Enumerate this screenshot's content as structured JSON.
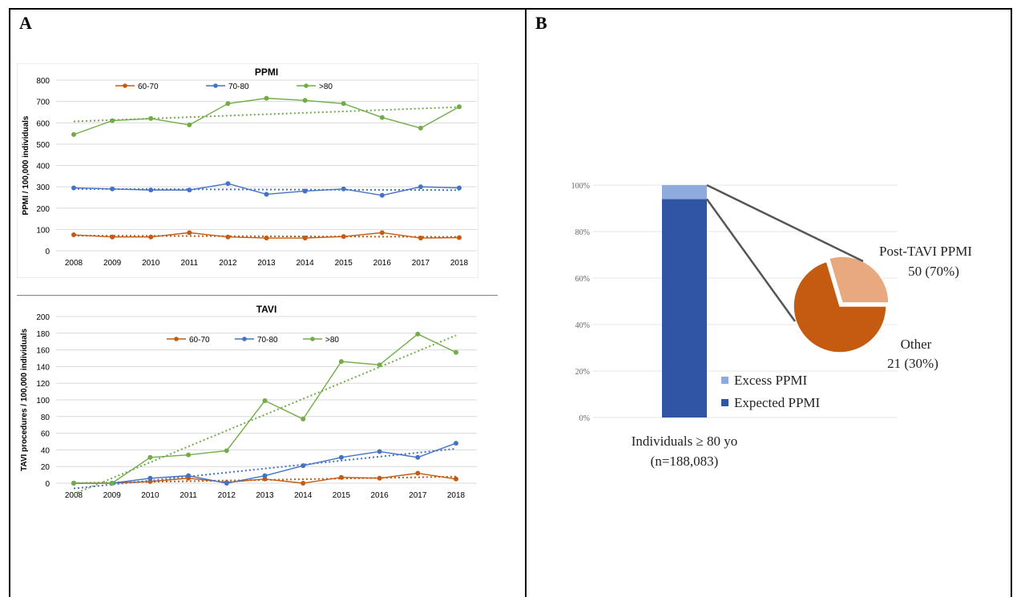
{
  "panels": {
    "a_label": "A",
    "b_label": "B"
  },
  "chart_data": [
    {
      "type": "line",
      "title": "PPMI",
      "ylabel": "PPMI / 100,000 individuals",
      "xlabel": "",
      "x": [
        "2008",
        "2009",
        "2010",
        "2011",
        "2012",
        "2013",
        "2014",
        "2015",
        "2016",
        "2017",
        "2018"
      ],
      "ylim": [
        0,
        800
      ],
      "yticks": [
        0,
        100,
        200,
        300,
        400,
        500,
        600,
        700,
        800
      ],
      "grid": true,
      "legend": "top",
      "trendlines": true,
      "series": [
        {
          "name": "60-70",
          "color": "#c55a11",
          "values": [
            75,
            65,
            65,
            85,
            65,
            60,
            60,
            67,
            85,
            60,
            62
          ]
        },
        {
          "name": "70-80",
          "color": "#4472c4",
          "values": [
            295,
            290,
            285,
            285,
            315,
            265,
            280,
            290,
            260,
            300,
            295
          ]
        },
        {
          "name": ">80",
          "color": "#70ad47",
          "values": [
            545,
            610,
            620,
            590,
            690,
            715,
            705,
            690,
            625,
            575,
            675
          ]
        }
      ]
    },
    {
      "type": "line",
      "title": "TAVI",
      "ylabel": "TAVI procedures / 100,000 individuals",
      "xlabel": "",
      "x": [
        "2008",
        "2009",
        "2010",
        "2011",
        "2012",
        "2013",
        "2014",
        "2015",
        "2016",
        "2017",
        "2018"
      ],
      "ylim": [
        0,
        200
      ],
      "yticks": [
        0,
        20,
        40,
        60,
        80,
        100,
        120,
        140,
        160,
        180,
        200
      ],
      "grid": true,
      "legend": "top",
      "trendlines": true,
      "series": [
        {
          "name": "60-70",
          "color": "#c55a11",
          "values": [
            0,
            0,
            2,
            6,
            1,
            5,
            0,
            7,
            6,
            12,
            5
          ]
        },
        {
          "name": "70-80",
          "color": "#4472c4",
          "values": [
            0,
            0,
            6,
            9,
            0,
            9,
            21,
            31,
            38,
            31,
            48
          ]
        },
        {
          "name": ">80",
          "color": "#70ad47",
          "values": [
            0,
            0,
            31,
            34,
            39,
            99,
            77,
            146,
            142,
            179,
            157
          ]
        }
      ]
    },
    {
      "type": "bar",
      "stacked": true,
      "categories": [
        "Individuals ≥ 80 yo"
      ],
      "category_note": "(n=188,083)",
      "ylim": [
        0,
        100
      ],
      "yticks": [
        "0%",
        "20%",
        "40%",
        "60%",
        "80%",
        "100%"
      ],
      "legend": "right",
      "series": [
        {
          "name": "Expected PPMI",
          "color": "#2f55a4",
          "values": [
            94
          ]
        },
        {
          "name": "Excess PPMI",
          "color": "#8faadc",
          "values": [
            6
          ]
        }
      ]
    },
    {
      "type": "pie",
      "slices": [
        {
          "label": "Post-TAVI PPMI",
          "value_text": "50 (70%)",
          "value": 50,
          "color": "#c55a11"
        },
        {
          "label": "Other",
          "value_text": "21 (30%)",
          "value": 21,
          "color": "#e9a97f"
        }
      ]
    }
  ]
}
